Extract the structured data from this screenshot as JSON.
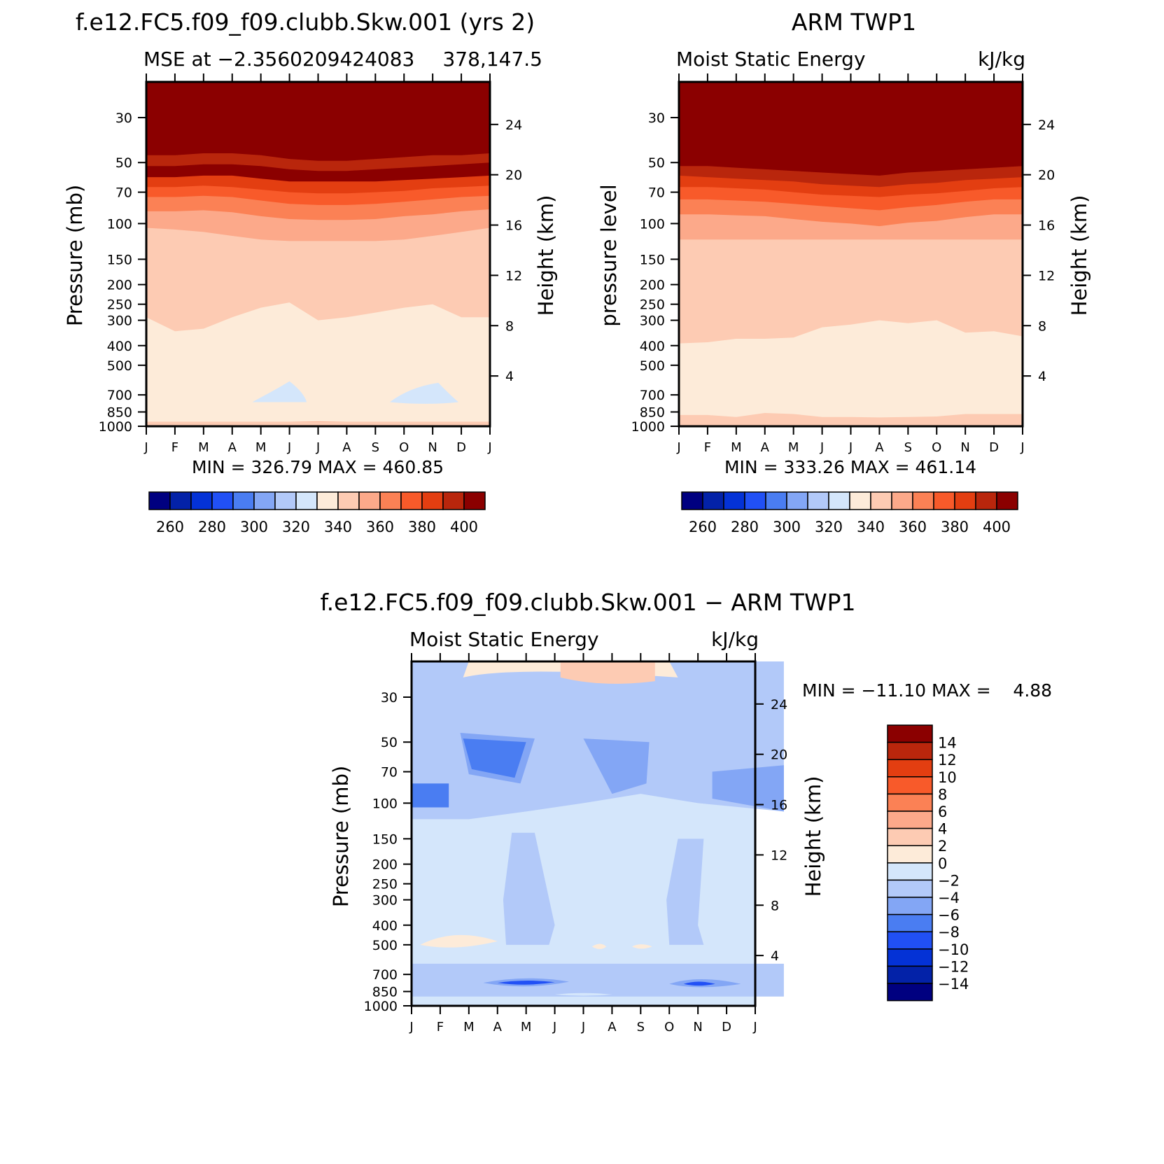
{
  "panels": {
    "model": {
      "title": "f.e12.FC5.f09_f09.clubb.Skw.001 (yrs 2)",
      "left_string": "MSE at −2.3560209424083",
      "right_string": "378,147.5",
      "left_axis_label": "Pressure (mb)",
      "right_axis_label": "Height (km)",
      "minmax": "MIN = 326.79 MAX = 460.85"
    },
    "obs": {
      "title": "ARM TWP1",
      "left_string": "Moist Static Energy",
      "right_string": "kJ/kg",
      "left_axis_label": "pressure level",
      "right_axis_label": "Height (km)",
      "minmax": "MIN = 333.26 MAX = 461.14"
    },
    "diff": {
      "title": "f.e12.FC5.f09_f09.clubb.Skw.001 − ARM TWP1",
      "left_string": "Moist Static Energy",
      "right_string": "kJ/kg",
      "left_axis_label": "Pressure (mb)",
      "right_axis_label": "Height (km)",
      "minmax": "MIN = −11.10 MAX =    4.88"
    }
  },
  "chart_data": [
    {
      "type": "heatmap",
      "title": "f.e12.FC5.f09_f09.clubb.Skw.001 (yrs 2)",
      "subtitle": "MSE at −2.3560209424083 378,147.5",
      "x": [
        "J",
        "F",
        "M",
        "A",
        "M",
        "J",
        "J",
        "A",
        "S",
        "O",
        "N",
        "D",
        "J"
      ],
      "pressure_levels_mb": [
        1000,
        850,
        700,
        500,
        400,
        300,
        250,
        200,
        150,
        100,
        70,
        50,
        30
      ],
      "height_ticks_km": [
        4,
        8,
        12,
        16,
        20,
        24
      ],
      "ylim_mb": [
        1000,
        20
      ],
      "ylabel": "Pressure (mb)",
      "y2label": "Height (km)",
      "colorbar_levels": [
        250,
        260,
        270,
        280,
        290,
        300,
        310,
        320,
        330,
        340,
        350,
        360,
        370,
        380,
        390,
        400
      ],
      "colorbar_labels": [
        "260",
        "280",
        "300",
        "320",
        "340",
        "360",
        "380",
        "400"
      ],
      "min": 326.79,
      "max": 460.85,
      "level_boundaries_mb": {
        "330": [
          950,
          950,
          950,
          950,
          950,
          950,
          945,
          950,
          950,
          950,
          950,
          950,
          950
        ],
        "340": [
          290,
          340,
          330,
          290,
          260,
          245,
          300,
          290,
          275,
          260,
          250,
          290,
          290
        ],
        "350": [
          105,
          107,
          110,
          115,
          120,
          122,
          122,
          122,
          122,
          120,
          115,
          110,
          105
        ],
        "360": [
          87,
          87,
          86,
          88,
          92,
          95,
          96,
          96,
          95,
          92,
          90,
          87,
          85
        ],
        "370": [
          74,
          74,
          73,
          74,
          77,
          80,
          81,
          81,
          80,
          78,
          76,
          74,
          73
        ],
        "380": [
          66,
          66,
          65,
          66,
          68,
          70,
          71,
          71,
          70,
          69,
          67,
          66,
          65
        ],
        "390": [
          59,
          59,
          58,
          58,
          60,
          62,
          62,
          62,
          62,
          61,
          60,
          59,
          58
        ]
      },
      "low_pockets": [
        {
          "months": "May–Jun",
          "p_mb": [
            650,
            770
          ],
          "range": "320–330"
        },
        {
          "months": "Sep–Nov",
          "p_mb": [
            640,
            770
          ],
          "range": "320–330"
        }
      ]
    },
    {
      "type": "heatmap",
      "title": "ARM TWP1",
      "subtitle": "Moist Static Energy kJ/kg",
      "x": [
        "J",
        "F",
        "M",
        "A",
        "M",
        "J",
        "J",
        "A",
        "S",
        "O",
        "N",
        "D",
        "J"
      ],
      "pressure_levels_mb": [
        1000,
        850,
        700,
        500,
        400,
        300,
        250,
        200,
        150,
        100,
        70,
        50,
        30
      ],
      "height_ticks_km": [
        4,
        8,
        12,
        16,
        20,
        24
      ],
      "ylim_mb": [
        1000,
        20
      ],
      "ylabel": "pressure level",
      "y2label": "Height (km)",
      "colorbar_levels": [
        250,
        260,
        270,
        280,
        290,
        300,
        310,
        320,
        330,
        340,
        350,
        360,
        370,
        380,
        390,
        400
      ],
      "colorbar_labels": [
        "260",
        "280",
        "300",
        "320",
        "340",
        "360",
        "380",
        "400"
      ],
      "min": 333.26,
      "max": 461.14,
      "level_boundaries_mb": {
        "340": [
          880,
          880,
          900,
          860,
          870,
          900,
          900,
          905,
          900,
          895,
          870,
          870,
          870
        ],
        "350": [
          390,
          385,
          370,
          370,
          365,
          325,
          315,
          300,
          310,
          300,
          345,
          340,
          360
        ],
        "360": [
          120,
          120,
          120,
          120,
          120,
          120,
          120,
          120,
          120,
          120,
          120,
          120,
          120
        ],
        "370": [
          90,
          90,
          91,
          92,
          95,
          98,
          100,
          103,
          99,
          97,
          93,
          90,
          90
        ],
        "380": [
          76,
          76,
          77,
          78,
          80,
          82,
          84,
          86,
          83,
          81,
          78,
          76,
          76
        ],
        "390": [
          66,
          66,
          67,
          68,
          70,
          72,
          73,
          74,
          72,
          71,
          69,
          67,
          66
        ],
        "400": [
          58,
          59,
          60,
          61,
          62,
          64,
          65,
          66,
          64,
          63,
          61,
          60,
          59
        ]
      }
    },
    {
      "type": "heatmap",
      "title": "f.e12.FC5.f09_f09.clubb.Skw.001 − ARM TWP1",
      "subtitle": "Moist Static Energy kJ/kg",
      "x": [
        "J",
        "F",
        "M",
        "A",
        "M",
        "J",
        "J",
        "A",
        "S",
        "O",
        "N",
        "D",
        "J"
      ],
      "pressure_levels_mb": [
        1000,
        850,
        700,
        500,
        400,
        300,
        250,
        200,
        150,
        100,
        70,
        50,
        30
      ],
      "height_ticks_km": [
        4,
        8,
        12,
        16,
        20,
        24
      ],
      "ylim_mb": [
        1000,
        20
      ],
      "ylabel": "Pressure (mb)",
      "y2label": "Height (km)",
      "colorbar_levels": [
        -14,
        -12,
        -10,
        -8,
        -6,
        -4,
        -2,
        0,
        2,
        4,
        6,
        8,
        10,
        12,
        14
      ],
      "colorbar_labels": [
        "14",
        "12",
        "10",
        "8",
        "6",
        "4",
        "2",
        "0",
        "−2",
        "−4",
        "−6",
        "−8",
        "−10",
        "−12",
        "−14"
      ],
      "min": -11.1,
      "max": 4.88,
      "dominant_range": "−2 to 0"
    }
  ],
  "colors": {
    "warm": [
      "#fdebd9",
      "#fdcbb3",
      "#fca98a",
      "#fb8155",
      "#f85a2a",
      "#e33e11",
      "#b9260c",
      "#8b0000"
    ],
    "cool": [
      "#000080",
      "#0322a8",
      "#0432d6",
      "#2150f5",
      "#4a7df2",
      "#83a6f5",
      "#b2c9f9",
      "#d4e6fb"
    ]
  }
}
